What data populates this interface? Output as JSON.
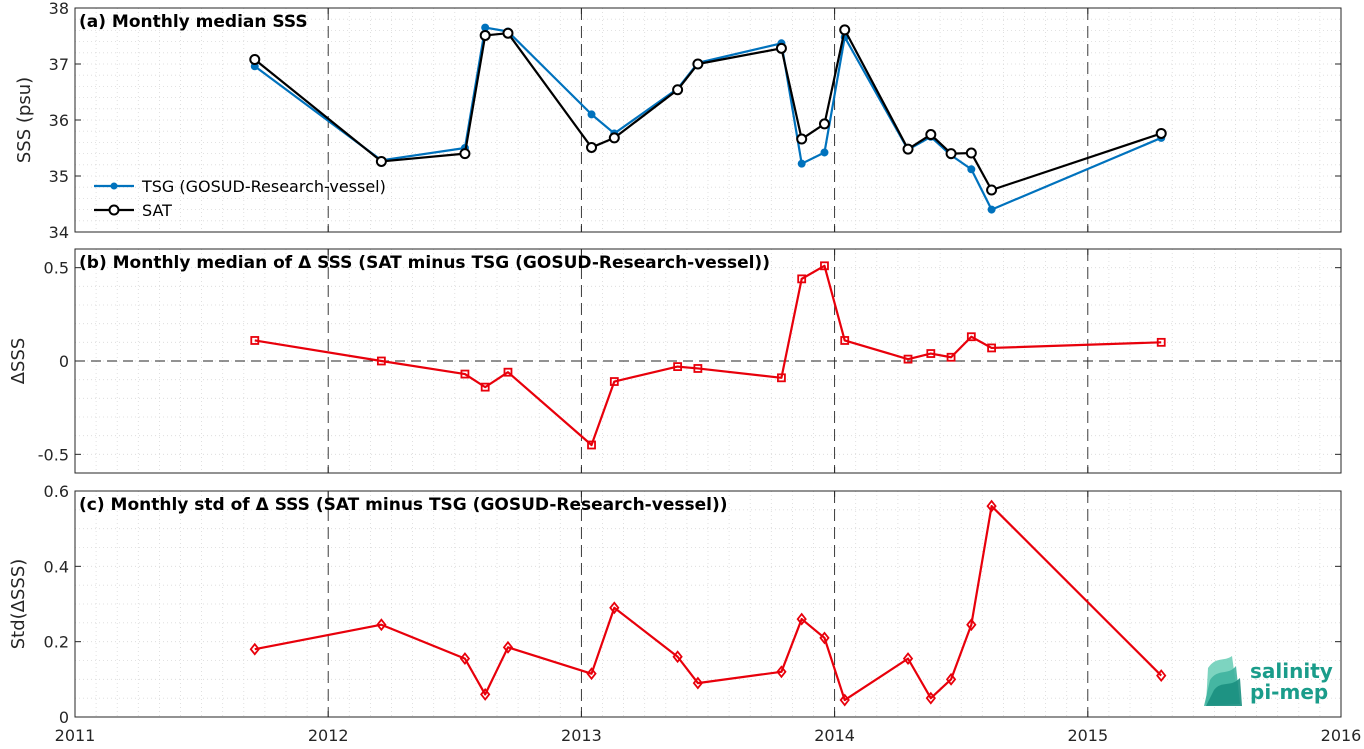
{
  "colors": {
    "tsg": "#0072BD",
    "sat": "#000000",
    "delta": "#E8000B",
    "logo": "#1a9c8a"
  },
  "logo": {
    "line1": "salinity",
    "line2": "pi-mep",
    "icon": "salinity-wave-logo-icon"
  },
  "chart_data": [
    {
      "type": "line",
      "title": "(a) Monthly median SSS",
      "ylabel": "SSS (psu)",
      "xlabel": "",
      "xlim": [
        2011,
        2016
      ],
      "ylim": [
        34,
        38
      ],
      "xticks": [
        "2011",
        "2012",
        "2013",
        "2014",
        "2015",
        "2016"
      ],
      "yticks": [
        "34",
        "35",
        "36",
        "37",
        "38"
      ],
      "grid": true,
      "legend_position": "bottom-left",
      "series": [
        {
          "name": "TSG (GOSUD-Research-vessel)",
          "marker": "dot",
          "x": [
            2011.71,
            2012.21,
            2012.54,
            2012.62,
            2012.71,
            2013.04,
            2013.13,
            2013.38,
            2013.46,
            2013.79,
            2013.87,
            2013.96,
            2014.04,
            2014.29,
            2014.38,
            2014.46,
            2014.54,
            2014.62,
            2015.29
          ],
          "values": [
            36.96,
            35.28,
            35.5,
            37.65,
            37.58,
            36.1,
            35.76,
            36.56,
            37.02,
            37.37,
            35.22,
            35.42,
            37.48,
            35.47,
            35.7,
            35.37,
            35.12,
            34.4,
            35.68
          ]
        },
        {
          "name": "SAT",
          "marker": "circle",
          "x": [
            2011.71,
            2012.21,
            2012.54,
            2012.62,
            2012.71,
            2013.04,
            2013.13,
            2013.38,
            2013.46,
            2013.79,
            2013.87,
            2013.96,
            2014.04,
            2014.29,
            2014.38,
            2014.46,
            2014.54,
            2014.62,
            2015.29
          ],
          "values": [
            37.08,
            35.26,
            35.4,
            37.51,
            37.55,
            35.51,
            35.68,
            36.54,
            37.0,
            37.28,
            35.66,
            35.93,
            37.61,
            35.48,
            35.74,
            35.4,
            35.41,
            34.75,
            35.76
          ]
        }
      ]
    },
    {
      "type": "line",
      "title": "(b) Monthly median of Δ SSS (SAT minus TSG (GOSUD-Research-vessel))",
      "ylabel": "ΔSSS",
      "xlabel": "",
      "xlim": [
        2011,
        2016
      ],
      "ylim": [
        -0.6,
        0.6
      ],
      "xticks": [],
      "yticks": [
        "-0.5",
        "0",
        "0.5"
      ],
      "grid": true,
      "zero_line": true,
      "series": [
        {
          "marker": "square",
          "x": [
            2011.71,
            2012.21,
            2012.54,
            2012.62,
            2012.71,
            2013.04,
            2013.13,
            2013.38,
            2013.46,
            2013.79,
            2013.87,
            2013.96,
            2014.04,
            2014.29,
            2014.38,
            2014.46,
            2014.54,
            2014.62,
            2015.29
          ],
          "values": [
            0.11,
            0.0,
            -0.07,
            -0.14,
            -0.06,
            -0.45,
            -0.11,
            -0.03,
            -0.04,
            -0.09,
            0.44,
            0.51,
            0.11,
            0.01,
            0.04,
            0.02,
            0.13,
            0.07,
            0.1
          ]
        }
      ]
    },
    {
      "type": "line",
      "title": "(c) Monthly std of Δ SSS (SAT minus TSG (GOSUD-Research-vessel))",
      "ylabel": "Std(ΔSSS)",
      "xlabel": "",
      "xlim": [
        2011,
        2016
      ],
      "ylim": [
        0,
        0.6
      ],
      "xticks": [
        "2011",
        "2012",
        "2013",
        "2014",
        "2015",
        "2016"
      ],
      "yticks": [
        "0",
        "0.2",
        "0.4",
        "0.6"
      ],
      "grid": true,
      "series": [
        {
          "marker": "diamond",
          "x": [
            2011.71,
            2012.21,
            2012.54,
            2012.62,
            2012.71,
            2013.04,
            2013.13,
            2013.38,
            2013.46,
            2013.79,
            2013.87,
            2013.96,
            2014.04,
            2014.29,
            2014.38,
            2014.46,
            2014.54,
            2014.62,
            2015.29
          ],
          "values": [
            0.18,
            0.245,
            0.155,
            0.06,
            0.185,
            0.115,
            0.29,
            0.16,
            0.09,
            0.12,
            0.26,
            0.21,
            0.045,
            0.155,
            0.05,
            0.1,
            0.245,
            0.56,
            0.11
          ]
        }
      ]
    }
  ]
}
